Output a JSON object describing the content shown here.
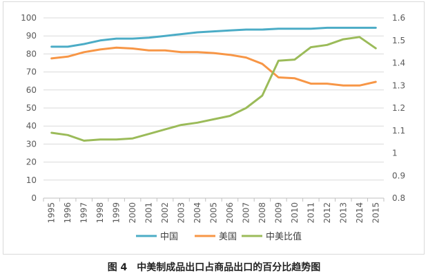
{
  "caption": "图 4　中美制成品出口占商品出口的百分比趋势图",
  "chart_data": {
    "type": "line",
    "categories": [
      "1995",
      "1996",
      "1997",
      "1998",
      "1999",
      "2000",
      "2001",
      "2002",
      "2003",
      "2004",
      "2005",
      "2006",
      "2007",
      "2008",
      "2009",
      "2010",
      "2011",
      "2012",
      "2013",
      "2014",
      "2015"
    ],
    "y_left": {
      "min": 0,
      "max": 100,
      "ticks": [
        0,
        10,
        20,
        30,
        40,
        50,
        60,
        70,
        80,
        90,
        100
      ]
    },
    "y_right": {
      "min": 0.8,
      "max": 1.6,
      "ticks": [
        "0.8",
        "0.9",
        "1",
        "1.1",
        "1.2",
        "1.3",
        "1.4",
        "1.5",
        "1.6"
      ]
    },
    "series": [
      {
        "name": "中国",
        "axis": "left",
        "color": "#4BACC6",
        "values": [
          84,
          84,
          85.5,
          87.5,
          88.5,
          88.5,
          89,
          90,
          91,
          92,
          92.5,
          93,
          93.5,
          93.5,
          94,
          94,
          94,
          94.5,
          94.5,
          94.5,
          94.5
        ]
      },
      {
        "name": "美国",
        "axis": "left",
        "color": "#F79646",
        "values": [
          77.5,
          78.5,
          81,
          82.5,
          83.5,
          83,
          82,
          82,
          81,
          81,
          80.5,
          79.5,
          78,
          74.5,
          67,
          66.5,
          63.5,
          63.5,
          62.5,
          62.5,
          64.5
        ]
      },
      {
        "name": "中美比值",
        "axis": "right",
        "color": "#9BBB59",
        "values": [
          1.09,
          1.08,
          1.055,
          1.06,
          1.06,
          1.065,
          1.085,
          1.105,
          1.125,
          1.135,
          1.15,
          1.165,
          1.2,
          1.255,
          1.41,
          1.415,
          1.47,
          1.48,
          1.505,
          1.515,
          1.465
        ]
      }
    ],
    "grid": "horizontal",
    "legend_position": "bottom"
  }
}
